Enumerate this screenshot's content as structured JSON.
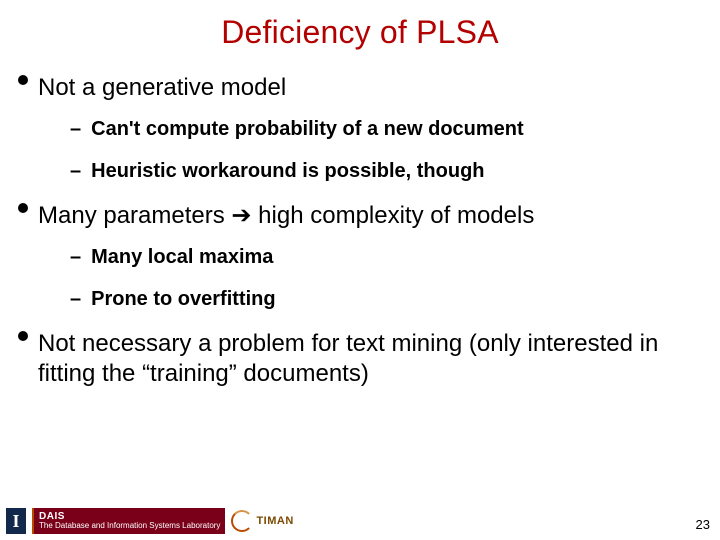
{
  "title": {
    "text": "Deficiency of PLSA",
    "color": "#b30000",
    "fontsize": 32
  },
  "bullets": [
    {
      "text": "Not a generative model",
      "sub": [
        "Can't compute probability of a new document",
        "Heuristic workaround is possible, though"
      ]
    },
    {
      "text": "Many parameters ➔ high complexity of models",
      "sub": [
        "Many local maxima",
        "Prone to overfitting"
      ]
    },
    {
      "text": "Not necessary a problem for text mining (only interested in fitting the “training” documents)",
      "sub": []
    }
  ],
  "footer": {
    "logo_i_text": "I",
    "logo_i_bg": "#13294b",
    "dais_top": "DAIS",
    "dais_bottom": "The Database and Information Systems Laboratory",
    "dais_bg": "#7a0019",
    "timan_text": "TIMAN",
    "timan_color": "#7a4a00"
  },
  "page_number": "23",
  "colors": {
    "background": "#ffffff",
    "bullet_dot": "#000000",
    "level1_text": "#000000",
    "level2_text": "#000000"
  }
}
